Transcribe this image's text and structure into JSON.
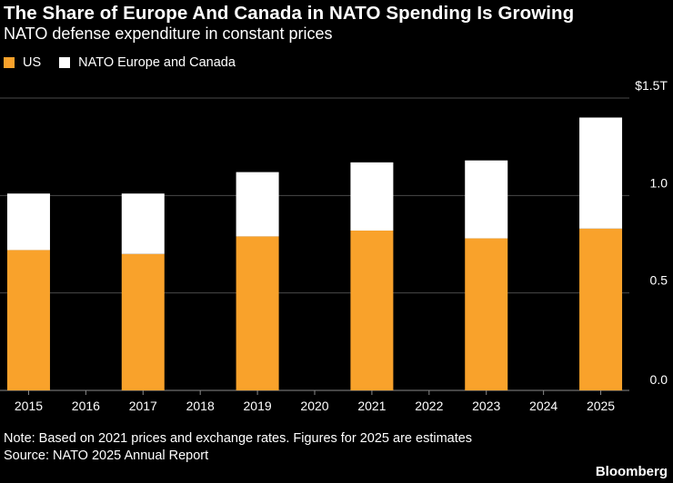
{
  "chart_data": {
    "type": "bar",
    "stacked": true,
    "title": "The Share of Europe And Canada in NATO Spending Is Growing",
    "subtitle": "NATO defense expenditure in constant prices",
    "categories": [
      "2015",
      "2016",
      "2017",
      "2018",
      "2019",
      "2020",
      "2021",
      "2022",
      "2023",
      "2024",
      "2025"
    ],
    "series": [
      {
        "name": "US",
        "color": "#F9A22B",
        "values": [
          0.72,
          null,
          0.7,
          null,
          0.79,
          null,
          0.82,
          null,
          0.78,
          null,
          0.83
        ]
      },
      {
        "name": "NATO Europe and Canada",
        "color": "#FFFFFF",
        "values": [
          0.29,
          null,
          0.31,
          null,
          0.33,
          null,
          0.35,
          null,
          0.4,
          null,
          0.57
        ]
      }
    ],
    "ylim": [
      0,
      1.5
    ],
    "yticks": [
      {
        "value": 0,
        "label": "0.0"
      },
      {
        "value": 0.5,
        "label": "0.5"
      },
      {
        "value": 1.0,
        "label": "1.0"
      },
      {
        "value": 1.5,
        "label": "$1.5T"
      }
    ],
    "xlabel": "",
    "ylabel": "",
    "grid": true,
    "legend_position": "top-left"
  },
  "note": "Note: Based on 2021 prices and exchange rates. Figures for 2025 are estimates",
  "source": "Source: NATO 2025 Annual Report",
  "brand": "Bloomberg"
}
